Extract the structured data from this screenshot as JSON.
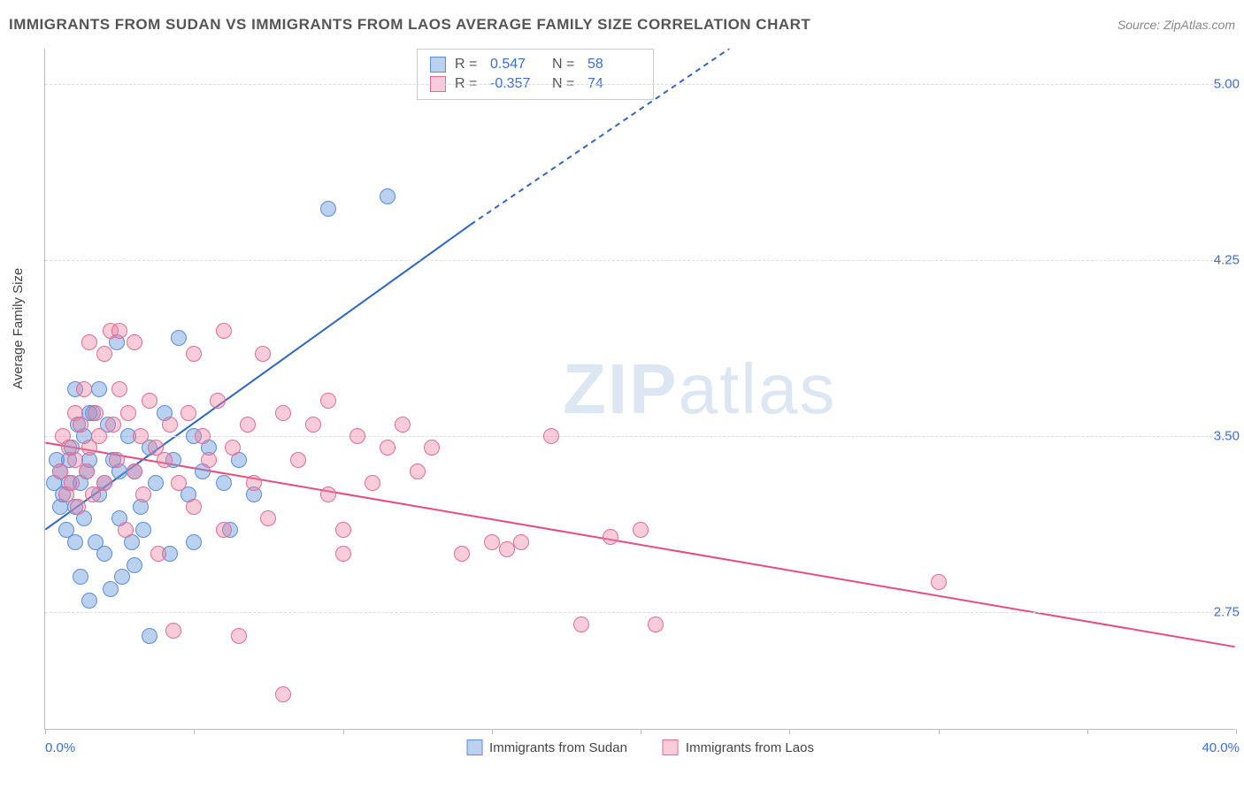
{
  "title": "IMMIGRANTS FROM SUDAN VS IMMIGRANTS FROM LAOS AVERAGE FAMILY SIZE CORRELATION CHART",
  "source_label": "Source: ZipAtlas.com",
  "ylabel": "Average Family Size",
  "watermark_bold": "ZIP",
  "watermark_light": "atlas",
  "chart": {
    "type": "scatter",
    "xlim": [
      0,
      40
    ],
    "ylim": [
      2.25,
      5.15
    ],
    "xticks": [
      0,
      5,
      10,
      15,
      20,
      25,
      30,
      35,
      40
    ],
    "yticks": [
      2.75,
      3.5,
      4.25,
      5.0
    ],
    "xaxis_min_label": "0.0%",
    "xaxis_max_label": "40.0%",
    "ytick_labels": [
      "2.75",
      "3.50",
      "4.25",
      "5.00"
    ],
    "grid_color": "#dddddd",
    "axis_color": "#bbbbbb",
    "background_color": "#ffffff",
    "point_radius": 9,
    "series": [
      {
        "name": "Immigrants from Sudan",
        "color_fill": "rgba(103,152,222,0.45)",
        "color_stroke": "#5b8dd8",
        "R": "0.547",
        "N": "58",
        "regression": {
          "x1": 0,
          "y1": 3.1,
          "x2": 14.3,
          "y2": 4.4,
          "x2_dash": 23,
          "y2_dash": 5.15,
          "color": "#2b66c9",
          "width": 2
        },
        "points": [
          [
            0.3,
            3.3
          ],
          [
            0.4,
            3.4
          ],
          [
            0.5,
            3.35
          ],
          [
            0.5,
            3.2
          ],
          [
            0.6,
            3.25
          ],
          [
            0.7,
            3.1
          ],
          [
            0.8,
            3.4
          ],
          [
            0.8,
            3.3
          ],
          [
            0.9,
            3.45
          ],
          [
            1.0,
            3.7
          ],
          [
            1.0,
            3.2
          ],
          [
            1.1,
            3.55
          ],
          [
            1.2,
            3.3
          ],
          [
            1.2,
            2.9
          ],
          [
            1.3,
            3.15
          ],
          [
            1.3,
            3.5
          ],
          [
            1.4,
            3.35
          ],
          [
            1.5,
            3.4
          ],
          [
            1.5,
            2.8
          ],
          [
            1.6,
            3.6
          ],
          [
            1.7,
            3.05
          ],
          [
            1.8,
            3.25
          ],
          [
            1.8,
            3.7
          ],
          [
            2.0,
            3.3
          ],
          [
            2.0,
            3.0
          ],
          [
            2.1,
            3.55
          ],
          [
            2.2,
            2.85
          ],
          [
            2.3,
            3.4
          ],
          [
            2.4,
            3.9
          ],
          [
            2.5,
            3.15
          ],
          [
            2.5,
            3.35
          ],
          [
            2.6,
            2.9
          ],
          [
            2.8,
            3.5
          ],
          [
            2.9,
            3.05
          ],
          [
            3.0,
            3.35
          ],
          [
            3.0,
            2.95
          ],
          [
            3.2,
            3.2
          ],
          [
            3.3,
            3.1
          ],
          [
            3.5,
            2.65
          ],
          [
            3.5,
            3.45
          ],
          [
            3.7,
            3.3
          ],
          [
            4.0,
            3.6
          ],
          [
            4.2,
            3.0
          ],
          [
            4.3,
            3.4
          ],
          [
            4.5,
            3.92
          ],
          [
            4.8,
            3.25
          ],
          [
            5.0,
            3.5
          ],
          [
            5.0,
            3.05
          ],
          [
            5.3,
            3.35
          ],
          [
            5.5,
            3.45
          ],
          [
            6.0,
            3.3
          ],
          [
            6.2,
            3.1
          ],
          [
            6.5,
            3.4
          ],
          [
            7.0,
            3.25
          ],
          [
            9.5,
            4.47
          ],
          [
            11.5,
            4.52
          ],
          [
            1.0,
            3.05
          ],
          [
            1.5,
            3.6
          ]
        ]
      },
      {
        "name": "Immigrants from Laos",
        "color_fill": "rgba(238,130,160,0.40)",
        "color_stroke": "#e56b92",
        "R": "-0.357",
        "N": "74",
        "regression": {
          "x1": 0,
          "y1": 3.47,
          "x2": 40,
          "y2": 2.6,
          "color": "#e94b7f",
          "width": 2
        },
        "points": [
          [
            0.5,
            3.35
          ],
          [
            0.6,
            3.5
          ],
          [
            0.7,
            3.25
          ],
          [
            0.8,
            3.45
          ],
          [
            0.9,
            3.3
          ],
          [
            1.0,
            3.6
          ],
          [
            1.0,
            3.4
          ],
          [
            1.1,
            3.2
          ],
          [
            1.2,
            3.55
          ],
          [
            1.3,
            3.7
          ],
          [
            1.4,
            3.35
          ],
          [
            1.5,
            3.45
          ],
          [
            1.5,
            3.9
          ],
          [
            1.6,
            3.25
          ],
          [
            1.7,
            3.6
          ],
          [
            1.8,
            3.5
          ],
          [
            2.0,
            3.85
          ],
          [
            2.0,
            3.3
          ],
          [
            2.2,
            3.95
          ],
          [
            2.3,
            3.55
          ],
          [
            2.4,
            3.4
          ],
          [
            2.5,
            3.7
          ],
          [
            2.5,
            3.95
          ],
          [
            2.7,
            3.1
          ],
          [
            2.8,
            3.6
          ],
          [
            3.0,
            3.9
          ],
          [
            3.0,
            3.35
          ],
          [
            3.2,
            3.5
          ],
          [
            3.3,
            3.25
          ],
          [
            3.5,
            3.65
          ],
          [
            3.7,
            3.45
          ],
          [
            3.8,
            3.0
          ],
          [
            4.0,
            3.4
          ],
          [
            4.2,
            3.55
          ],
          [
            4.3,
            2.67
          ],
          [
            4.5,
            3.3
          ],
          [
            4.8,
            3.6
          ],
          [
            5.0,
            3.85
          ],
          [
            5.0,
            3.2
          ],
          [
            5.3,
            3.5
          ],
          [
            5.5,
            3.4
          ],
          [
            5.8,
            3.65
          ],
          [
            6.0,
            3.95
          ],
          [
            6.0,
            3.1
          ],
          [
            6.3,
            3.45
          ],
          [
            6.5,
            2.65
          ],
          [
            6.8,
            3.55
          ],
          [
            7.0,
            3.3
          ],
          [
            7.3,
            3.85
          ],
          [
            7.5,
            3.15
          ],
          [
            8.0,
            3.6
          ],
          [
            8.0,
            2.4
          ],
          [
            8.5,
            3.4
          ],
          [
            9.0,
            3.55
          ],
          [
            9.5,
            3.25
          ],
          [
            10.0,
            3.1
          ],
          [
            10.5,
            3.5
          ],
          [
            11.0,
            3.3
          ],
          [
            12.0,
            3.55
          ],
          [
            13.0,
            3.45
          ],
          [
            14.0,
            3.0
          ],
          [
            15.0,
            3.05
          ],
          [
            16.0,
            3.05
          ],
          [
            17.0,
            3.5
          ],
          [
            18.0,
            2.7
          ],
          [
            19.0,
            3.07
          ],
          [
            20.0,
            3.1
          ],
          [
            20.5,
            2.7
          ],
          [
            9.5,
            3.65
          ],
          [
            10.0,
            3.0
          ],
          [
            11.5,
            3.45
          ],
          [
            12.5,
            3.35
          ],
          [
            15.5,
            3.02
          ],
          [
            30.0,
            2.88
          ]
        ]
      }
    ]
  },
  "stats_box": {
    "rows": [
      {
        "swatch_fill": "rgba(103,152,222,0.45)",
        "swatch_stroke": "#5b8dd8",
        "R_label": "R =",
        "R_val": "0.547",
        "N_label": "N =",
        "N_val": "58"
      },
      {
        "swatch_fill": "rgba(238,130,160,0.40)",
        "swatch_stroke": "#e56b92",
        "R_label": "R =",
        "R_val": "-0.357",
        "N_label": "N =",
        "N_val": "74"
      }
    ]
  },
  "legend_bottom": [
    {
      "swatch_fill": "rgba(103,152,222,0.45)",
      "swatch_stroke": "#5b8dd8",
      "label": "Immigrants from Sudan"
    },
    {
      "swatch_fill": "rgba(238,130,160,0.40)",
      "swatch_stroke": "#e56b92",
      "label": "Immigrants from Laos"
    }
  ]
}
